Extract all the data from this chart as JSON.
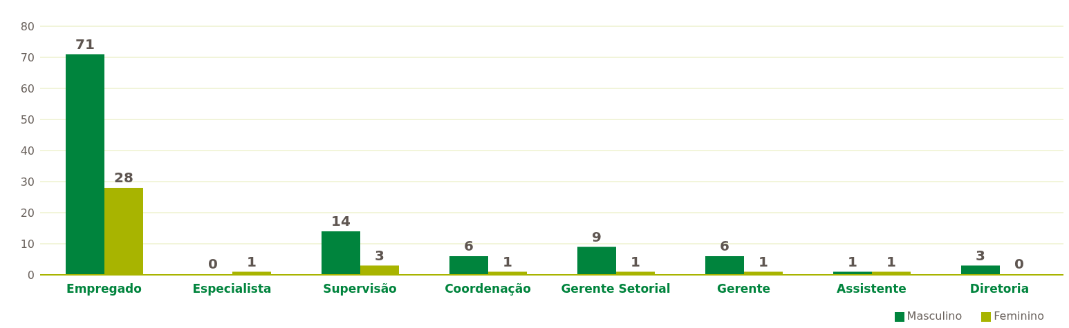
{
  "chart_data": {
    "type": "bar",
    "categories": [
      "Empregado",
      "Especialista",
      "Supervisão",
      "Coordenação",
      "Gerente Setorial",
      "Gerente",
      "Assistente",
      "Diretoria"
    ],
    "series": [
      {
        "name": "Masculino",
        "color": "#00843d",
        "values": [
          71,
          0,
          14,
          6,
          9,
          6,
          1,
          3
        ]
      },
      {
        "name": "Feminino",
        "color": "#a8b400",
        "values": [
          28,
          1,
          3,
          1,
          1,
          1,
          1,
          0
        ]
      }
    ],
    "ylim": [
      0,
      80
    ],
    "yticks": [
      0,
      10,
      20,
      30,
      40,
      50,
      60,
      70,
      80
    ],
    "grid": "y",
    "legend": "bottom right",
    "data_labels": true
  }
}
